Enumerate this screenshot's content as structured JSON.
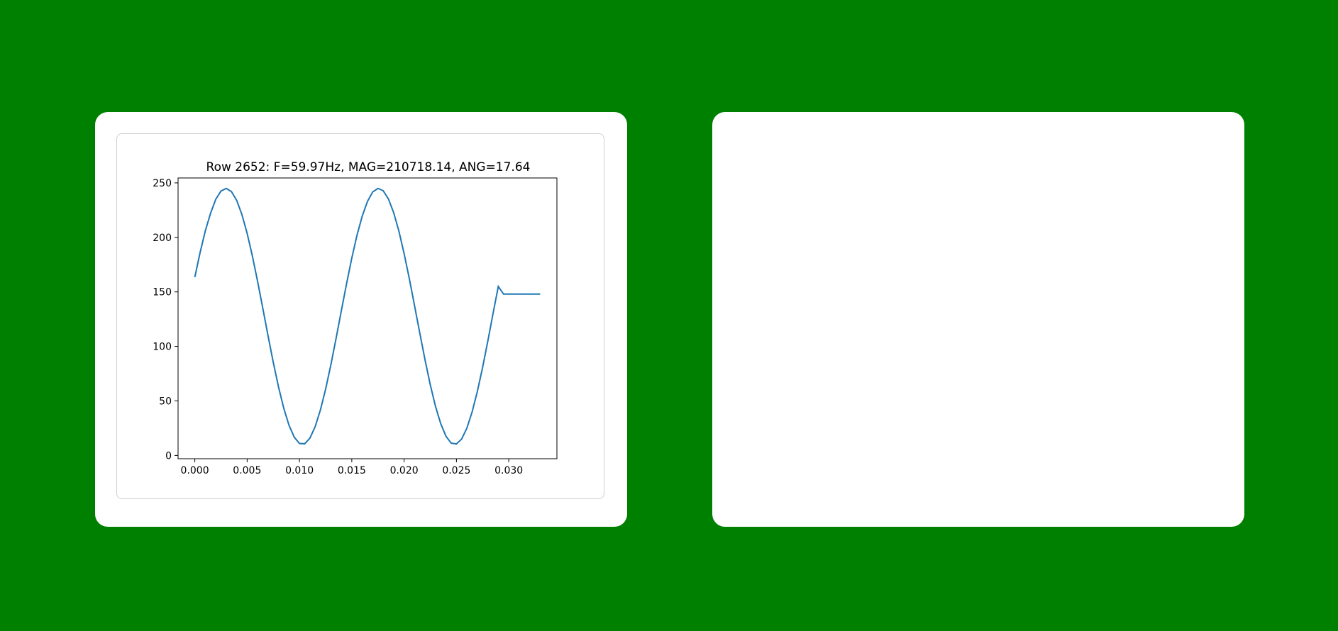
{
  "colors": {
    "background": "#008000",
    "card": "#ffffff",
    "line": "#1f77b4",
    "frame_border": "#cfcfcf",
    "axes": "#000000"
  },
  "chart_data": {
    "type": "line",
    "title": "Row 2652: F=59.97Hz, MAG=210718.14, ANG=17.64",
    "xlabel": "",
    "ylabel": "",
    "xlim": [
      -0.0016,
      0.0346
    ],
    "ylim": [
      -3,
      254.5
    ],
    "x_ticks": [
      0.0,
      0.005,
      0.01,
      0.015,
      0.02,
      0.025,
      0.03
    ],
    "x_tick_labels": [
      "0.000",
      "0.005",
      "0.010",
      "0.015",
      "0.020",
      "0.025",
      "0.030"
    ],
    "y_ticks": [
      0,
      50,
      100,
      150,
      200,
      250
    ],
    "y_tick_labels": [
      "0",
      "50",
      "100",
      "150",
      "200",
      "250"
    ],
    "grid": false,
    "series": [
      {
        "x": [
          0.0,
          0.0005,
          0.001,
          0.0015,
          0.002,
          0.0025,
          0.003,
          0.0035,
          0.004,
          0.0045,
          0.005,
          0.0055,
          0.006,
          0.0065,
          0.007,
          0.0075,
          0.008,
          0.0085,
          0.009,
          0.0095,
          0.01,
          0.0105,
          0.011,
          0.0115,
          0.012,
          0.0125,
          0.013,
          0.0135,
          0.014,
          0.0145,
          0.015,
          0.0155,
          0.016,
          0.0165,
          0.017,
          0.0175,
          0.018,
          0.0185,
          0.019,
          0.0195,
          0.02,
          0.0205,
          0.021,
          0.0215,
          0.022,
          0.0225,
          0.023,
          0.0235,
          0.024,
          0.0245,
          0.025,
          0.0255,
          0.026,
          0.0265,
          0.027,
          0.0275,
          0.028,
          0.0285,
          0.029,
          0.0295,
          0.03,
          0.0305,
          0.031,
          0.0315,
          0.032,
          0.0325,
          0.033
        ],
        "y": [
          163.5,
          185.9,
          205.8,
          222.0,
          234.9,
          242.5,
          244.9,
          242.0,
          234.0,
          221.0,
          203.7,
          182.9,
          159.6,
          134.8,
          109.6,
          85.2,
          62.7,
          43.3,
          27.7,
          16.8,
          11.0,
          10.7,
          15.9,
          26.4,
          41.7,
          60.8,
          83.1,
          107.4,
          132.6,
          157.5,
          181.0,
          202.1,
          219.6,
          233.0,
          241.7,
          244.9,
          242.8,
          235.3,
          222.7,
          205.8,
          185.1,
          162.0,
          137.2,
          112.1,
          87.6,
          64.8,
          45.0,
          29.1,
          17.6,
          11.3,
          10.5,
          15.1,
          25.1,
          40.0,
          58.8,
          80.8,
          105.0,
          130.3,
          155.0,
          148.0,
          148.0,
          148.0,
          148.0,
          148.0,
          148.0,
          148.0,
          148.0
        ]
      }
    ]
  }
}
